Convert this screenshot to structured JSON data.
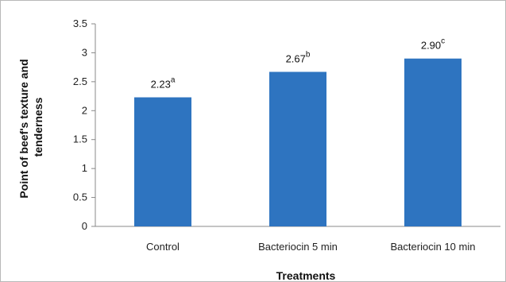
{
  "chart_data": {
    "type": "bar",
    "categories": [
      "Control",
      "Bacteriocin 5 min",
      "Bacteriocin 10 min"
    ],
    "values": [
      2.23,
      2.67,
      2.9
    ],
    "data_labels": [
      "2.23",
      "2.67",
      "2.90"
    ],
    "letters": [
      "a",
      "b",
      "c"
    ],
    "xlabel": "Treatments",
    "ylabel_lines": [
      "Point of beef's texture and",
      "tenderness"
    ],
    "ylim": [
      0,
      3.5
    ],
    "yticks": [
      "0",
      "0.5",
      "1",
      "1.5",
      "2",
      "2.5",
      "3",
      "3.5"
    ],
    "bar_color": "#2e74c0",
    "grid": false
  }
}
